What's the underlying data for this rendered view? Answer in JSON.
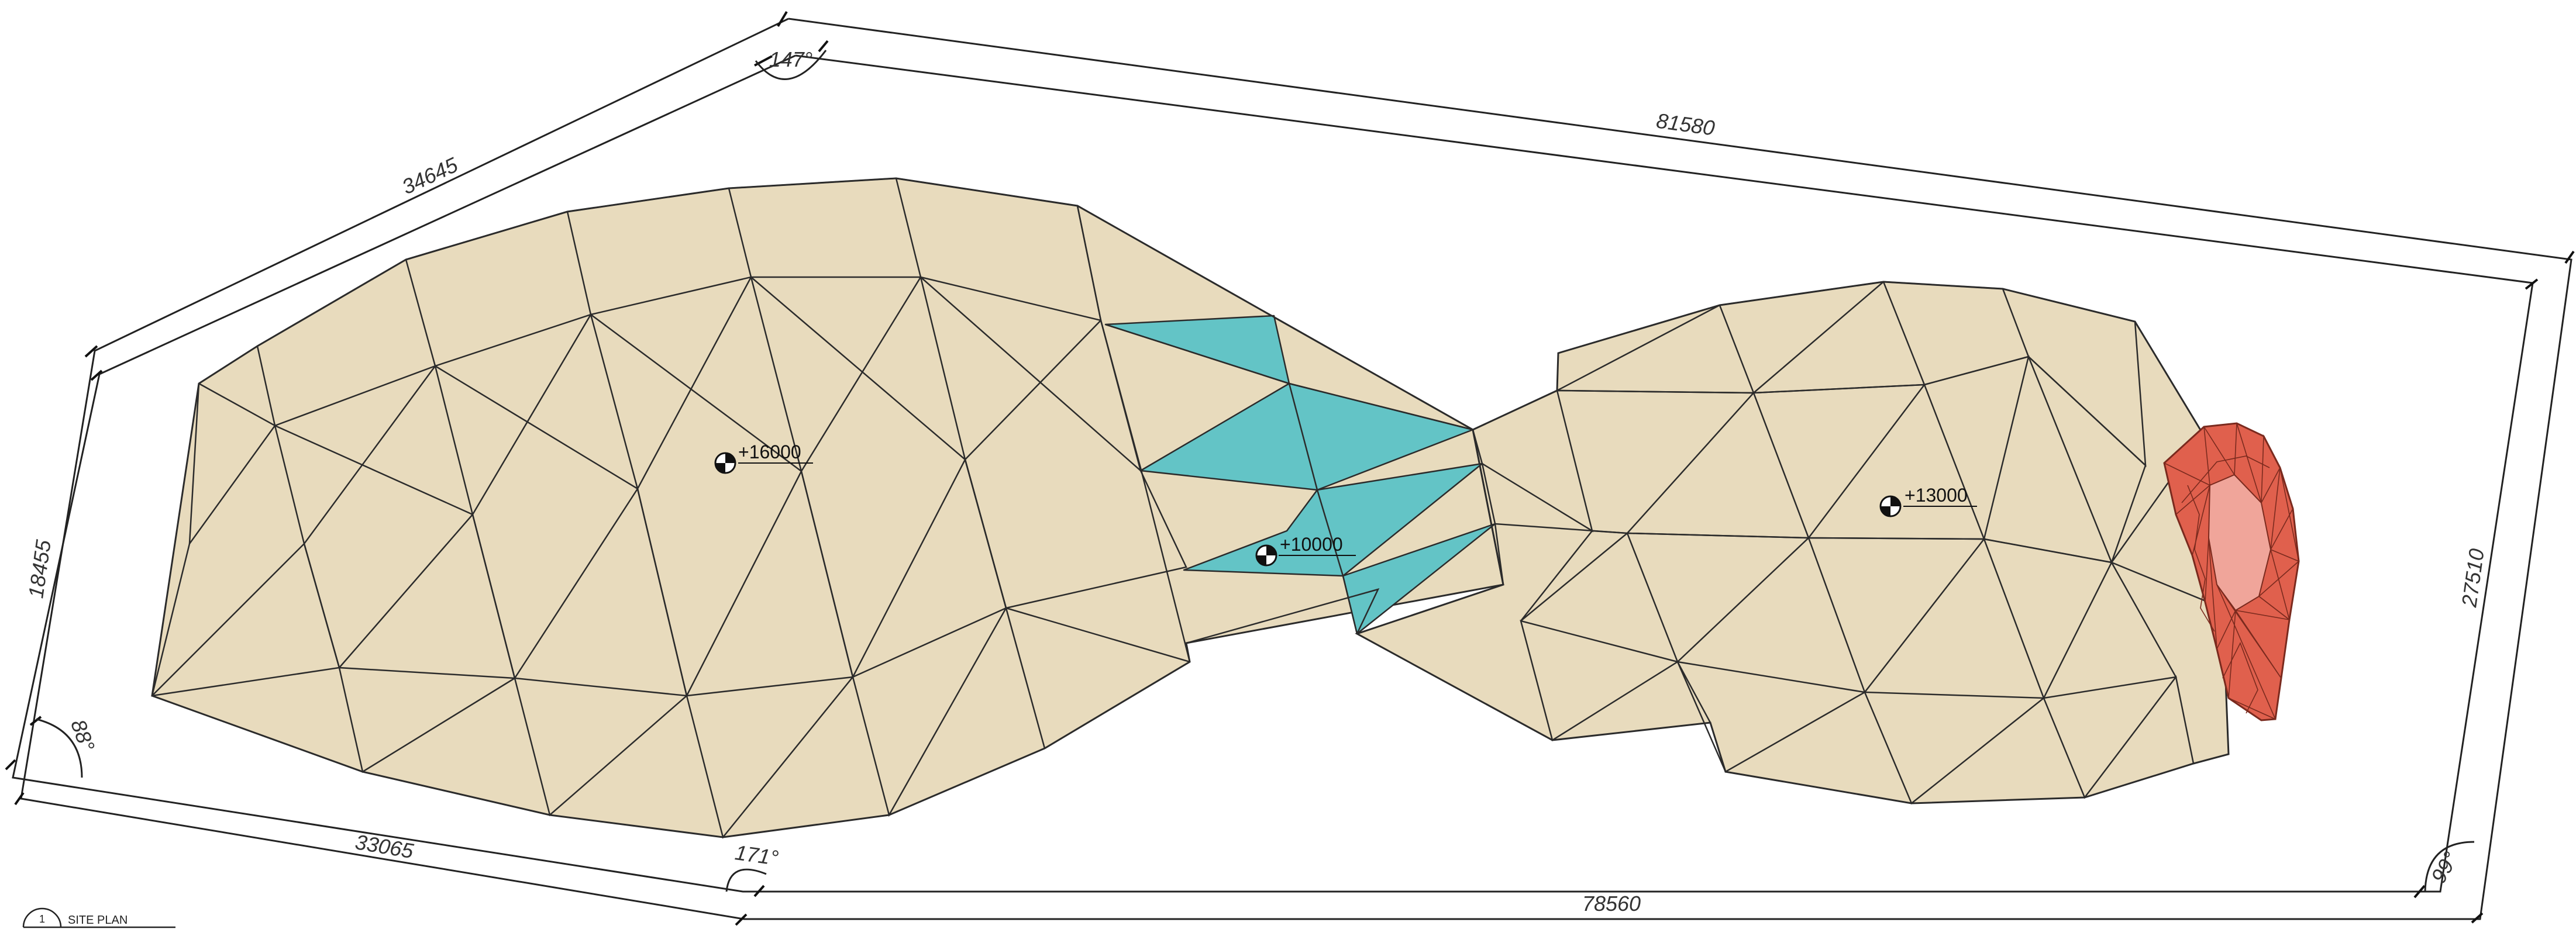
{
  "drawing": {
    "view_label": "SITE PLAN",
    "view_number": "1",
    "colors": {
      "landform": "#e8dbbd",
      "water": "#63c4c6",
      "feature": "#e0604d",
      "feature_light": "#f0a59a",
      "line": "#2b2b2b"
    }
  },
  "dimensions": {
    "top": "81580",
    "upper_left": "34645",
    "left": "18455",
    "bottom_left": "33065",
    "bottom": "78560",
    "right": "27510"
  },
  "angles": {
    "top": "147°",
    "left": "88°",
    "bottom": "171°",
    "right": "99°"
  },
  "levels": {
    "west_mound": "+16000",
    "water_basin": "+10000",
    "east_mound": "+13000"
  }
}
